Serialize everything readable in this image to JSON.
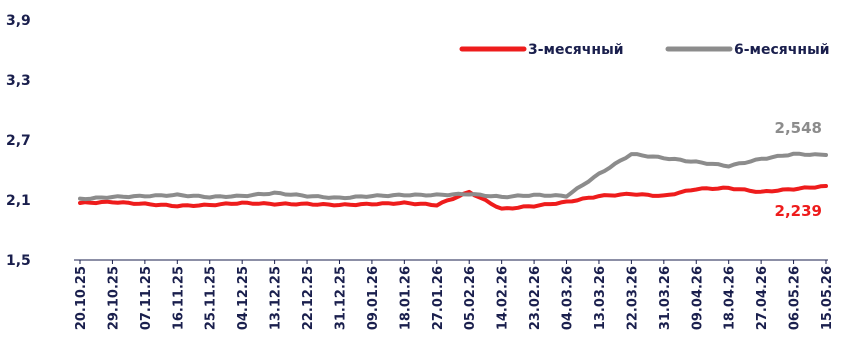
{
  "chart_data": {
    "type": "line",
    "title": "",
    "xlabel": "",
    "ylabel": "",
    "ylim": [
      1.5,
      3.9
    ],
    "y_ticks": [
      "3,9",
      "3,3",
      "2,7",
      "2,1",
      "1,5"
    ],
    "y_tick_values": [
      3.9,
      3.3,
      2.7,
      2.1,
      1.5
    ],
    "x_ticks": [
      "20.10.25",
      "29.10.25",
      "07.11.25",
      "16.11.25",
      "25.11.25",
      "04.12.25",
      "13.12.25",
      "22.12.25",
      "31.12.25",
      "09.01.26",
      "18.01.26",
      "27.01.26",
      "05.02.26",
      "14.02.26",
      "23.02.26",
      "04.03.26",
      "13.03.26",
      "22.03.26",
      "31.03.26",
      "09.04.26",
      "18.04.26",
      "27.04.26",
      "06.05.26",
      "15.05.26"
    ],
    "legend_position": "top-right",
    "grid": false,
    "series": [
      {
        "name": "3-месячный",
        "color": "#ee1c1c",
        "end_label": "2,239",
        "values": [
          2.07,
          2.08,
          2.06,
          2.04,
          2.05,
          2.07,
          2.06,
          2.06,
          2.05,
          2.06,
          2.07,
          2.05,
          2.18,
          2.01,
          2.04,
          2.08,
          2.14,
          2.16,
          2.14,
          2.21,
          2.22,
          2.18,
          2.21,
          2.24
        ]
      },
      {
        "name": "6-месячный",
        "color": "#8c8c8c",
        "end_label": "2,548",
        "values": [
          2.11,
          2.13,
          2.14,
          2.15,
          2.13,
          2.14,
          2.17,
          2.14,
          2.12,
          2.14,
          2.15,
          2.15,
          2.16,
          2.13,
          2.15,
          2.14,
          2.36,
          2.56,
          2.52,
          2.48,
          2.44,
          2.51,
          2.56,
          2.55
        ]
      }
    ]
  }
}
